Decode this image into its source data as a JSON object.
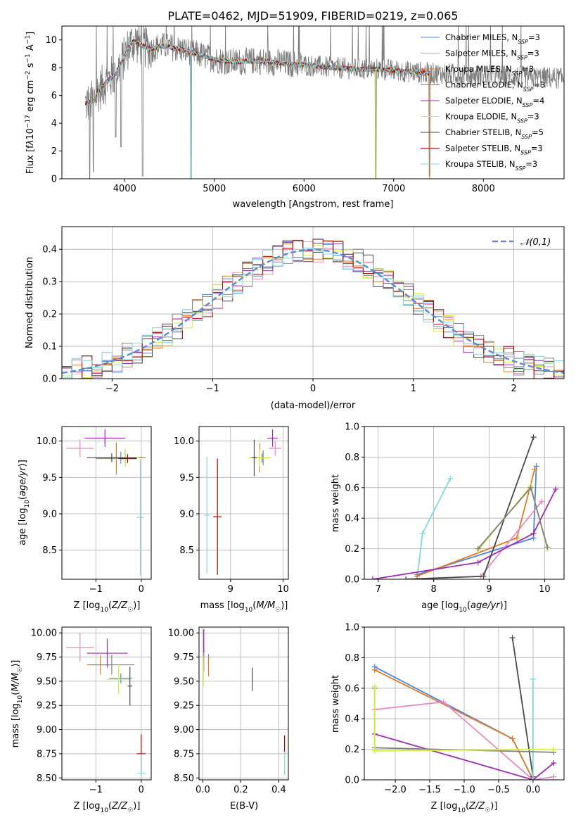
{
  "colors": {
    "Chabrier MILES": "#4f86e0",
    "Salpeter MILES": "#e78ac3",
    "Kroupa MILES": "#e07b28",
    "Chabrier ELODIE": "#808080",
    "Salpeter ELODIE": "#9b2ead",
    "Kroupa ELODIE": "#d6ef3a",
    "Chabrier STELIB": "#4a4a4a",
    "Salpeter STELIB": "#b00000",
    "Kroupa STELIB": "#7fd8e0",
    "gauss": "#5b8ed6"
  },
  "chart_data": [
    {
      "id": "spectrum",
      "type": "line",
      "title": "PLATE=0462, MJD=51909, FIBERID=0219, z=0.065",
      "xlabel": "wavelength [Angstrom, rest frame]",
      "ylabel_parts": [
        "Flux [f",
        "λ",
        "10",
        "−17",
        " erg cm",
        "−2",
        " s",
        "−1",
        " A",
        "−1",
        "]"
      ],
      "xlim": [
        3300,
        8900
      ],
      "ylim": [
        0,
        11
      ],
      "xticks": [
        4000,
        5000,
        6000,
        7000,
        8000
      ],
      "yticks": [
        0,
        2,
        4,
        6,
        8,
        10
      ],
      "legend": [
        {
          "model": "Chabrier MILES",
          "n": "3"
        },
        {
          "model": "Salpeter MILES",
          "n": "3"
        },
        {
          "model": "Kroupa MILES",
          "n": "3"
        },
        {
          "model": "Chabrier ELODIE",
          "n": "3"
        },
        {
          "model": "Salpeter ELODIE",
          "n": "4"
        },
        {
          "model": "Kroupa ELODIE",
          "n": "3"
        },
        {
          "model": "Chabrier STELIB",
          "n": "5"
        },
        {
          "model": "Salpeter STELIB",
          "n": "3"
        },
        {
          "model": "Kroupa STELIB",
          "n": "3"
        }
      ],
      "legend_prefix": "N",
      "legend_sub": "SSP",
      "legend_placement": "right",
      "continuum": [
        [
          3560,
          5.4
        ],
        [
          3650,
          5.6
        ],
        [
          3700,
          6.3
        ],
        [
          3800,
          7.0
        ],
        [
          3900,
          7.6
        ],
        [
          4000,
          8.8
        ],
        [
          4050,
          9.6
        ],
        [
          4100,
          9.9
        ],
        [
          4200,
          9.6
        ],
        [
          4300,
          9.3
        ],
        [
          4400,
          9.6
        ],
        [
          4500,
          9.5
        ],
        [
          4700,
          9.2
        ],
        [
          4900,
          8.8
        ],
        [
          5000,
          8.6
        ],
        [
          5200,
          8.4
        ],
        [
          5500,
          8.5
        ],
        [
          5800,
          8.3
        ],
        [
          6000,
          8.2
        ],
        [
          6300,
          8.0
        ],
        [
          6600,
          7.9
        ],
        [
          6800,
          7.9
        ],
        [
          7000,
          7.8
        ],
        [
          7200,
          7.7
        ],
        [
          7400,
          7.6
        ]
      ],
      "data_range": [
        3560,
        8900
      ],
      "model_range": [
        3560,
        7400
      ],
      "dips": [
        [
          3610,
          0
        ],
        [
          3650,
          0.5
        ],
        [
          3900,
          3.0
        ],
        [
          3960,
          2.3
        ],
        [
          4200,
          0.2
        ],
        [
          4740,
          0
        ],
        [
          6800,
          0
        ],
        [
          7400,
          0.2
        ]
      ],
      "grid": false
    },
    {
      "id": "residuals",
      "type": "step",
      "xlabel": "(data-model)/error",
      "ylabel": "Normed distribution",
      "xlim": [
        -2.5,
        2.5
      ],
      "ylim": [
        0,
        0.47
      ],
      "xticks": [
        -2,
        -1,
        0,
        1,
        2
      ],
      "yticks": [
        0.0,
        0.1,
        0.2,
        0.3,
        0.4
      ],
      "bin_width": 0.1,
      "legend": {
        "label": "𝒩(0,1)",
        "placement": "top-right"
      },
      "gaussian": {
        "mean": 0,
        "sigma": 1
      },
      "grid": true
    },
    {
      "id": "age_vs_Z",
      "type": "errorbar",
      "xlabel_parts": [
        "Z [log",
        "10",
        "(Z/Z",
        "☉",
        ")]"
      ],
      "ylabel_parts": [
        "age  [log",
        "10",
        "(age/yr)]"
      ],
      "xlim": [
        -1.75,
        0.22
      ],
      "ylim": [
        8.1,
        10.2
      ],
      "xticks": [
        -1,
        0
      ],
      "yticks": [
        8.5,
        9.0,
        9.5,
        10.0
      ],
      "grid": true,
      "points": [
        {
          "s": "Chabrier MILES",
          "x": -0.45,
          "y": 9.77,
          "xe": 0.5,
          "ye": 0.08
        },
        {
          "s": "Salpeter MILES",
          "x": -1.35,
          "y": 9.9,
          "xe": 0.3,
          "ye": 0.12
        },
        {
          "s": "Kroupa MILES",
          "x": -0.55,
          "y": 9.76,
          "xe": 0.45,
          "ye": 0.22
        },
        {
          "s": "Chabrier ELODIE",
          "x": -0.35,
          "y": 9.77,
          "xe": 0.45,
          "ye": 0.1
        },
        {
          "s": "Salpeter ELODIE",
          "x": -0.8,
          "y": 10.04,
          "xe": 0.45,
          "ye": 0.12
        },
        {
          "s": "Kroupa ELODIE",
          "x": -0.35,
          "y": 9.77,
          "xe": 0.3,
          "ye": 0.12
        },
        {
          "s": "Chabrier STELIB",
          "x": -0.65,
          "y": 9.77,
          "xe": 0.55,
          "ye": 0.06
        },
        {
          "s": "Salpeter STELIB",
          "x": -0.3,
          "y": 9.76,
          "xe": 0.2,
          "ye": 0.06
        },
        {
          "s": "Kroupa STELIB",
          "x": -0.02,
          "y": 8.95,
          "xe": 0.08,
          "ye": 0.8
        }
      ]
    },
    {
      "id": "age_vs_mass",
      "type": "errorbar",
      "xlabel_parts": [
        "mass [log",
        "10",
        "(M/M",
        "☉",
        ")]"
      ],
      "xlim": [
        8.4,
        10.1
      ],
      "ylim": [
        8.1,
        10.2
      ],
      "xticks": [
        8,
        9,
        10
      ],
      "yticks": [
        8.5,
        9.0,
        9.5,
        10.0
      ],
      "grid": true,
      "points": [
        {
          "s": "Chabrier MILES",
          "x": 9.6,
          "y": 9.77,
          "xe": 0.15,
          "ye": 0.06
        },
        {
          "s": "Salpeter MILES",
          "x": 9.85,
          "y": 9.9,
          "xe": 0.12,
          "ye": 0.1
        },
        {
          "s": "Kroupa MILES",
          "x": 9.55,
          "y": 9.77,
          "xe": 0.2,
          "ye": 0.2
        },
        {
          "s": "Chabrier ELODIE",
          "x": 9.62,
          "y": 9.77,
          "xe": 0.12,
          "ye": 0.1
        },
        {
          "s": "Salpeter ELODIE",
          "x": 9.8,
          "y": 10.04,
          "xe": 0.1,
          "ye": 0.12
        },
        {
          "s": "Kroupa ELODIE",
          "x": 9.55,
          "y": 9.77,
          "xe": 0.22,
          "ye": 0.12
        },
        {
          "s": "Chabrier STELIB",
          "x": 9.45,
          "y": 9.77,
          "xe": 0.05,
          "ye": 0.25
        },
        {
          "s": "Salpeter STELIB",
          "x": 8.75,
          "y": 8.96,
          "xe": 0.08,
          "ye": 0.8
        },
        {
          "s": "Kroupa STELIB",
          "x": 8.55,
          "y": 8.98,
          "xe": 0.05,
          "ye": 0.8
        }
      ]
    },
    {
      "id": "weight_vs_age",
      "type": "line",
      "xlabel_parts": [
        "age  [log",
        "10",
        "(age/yr)]"
      ],
      "ylabel": "mass weight",
      "xlim": [
        6.75,
        10.35
      ],
      "ylim": [
        0,
        1
      ],
      "xticks": [
        7,
        8,
        9,
        10
      ],
      "yticks": [
        0.0,
        0.2,
        0.4,
        0.6,
        0.8,
        1.0
      ],
      "grid": true,
      "series": [
        {
          "s": "Kroupa STELIB",
          "x": [
            7.7,
            7.8,
            8.3
          ],
          "y": [
            0.0,
            0.3,
            0.66
          ]
        },
        {
          "s": "Chabrier MILES",
          "x": [
            7.7,
            9.8,
            9.85
          ],
          "y": [
            0.03,
            0.27,
            0.74
          ]
        },
        {
          "s": "Kroupa MILES",
          "x": [
            7.7,
            9.5,
            9.82
          ],
          "y": [
            0.02,
            0.27,
            0.72
          ]
        },
        {
          "s": "Salpeter MILES",
          "x": [
            8.85,
            9.95
          ],
          "y": [
            0.02,
            0.51
          ]
        },
        {
          "s": "Salpeter ELODIE",
          "x": [
            6.9,
            8.8,
            9.8,
            10.2
          ],
          "y": [
            0.0,
            0.11,
            0.3,
            0.59
          ]
        },
        {
          "s": "Chabrier STELIB",
          "x": [
            7.5,
            8.9,
            9.8
          ],
          "y": [
            0.0,
            0.02,
            0.93
          ]
        },
        {
          "s": "Kroupa ELODIE",
          "x": [
            8.8,
            9.75,
            10.05
          ],
          "y": [
            0.19,
            0.61,
            0.2
          ]
        },
        {
          "s": "Chabrier ELODIE",
          "x": [
            8.8,
            9.75,
            10.05
          ],
          "y": [
            0.2,
            0.6,
            0.21
          ]
        }
      ]
    },
    {
      "id": "mass_vs_Z",
      "type": "errorbar",
      "xlabel_parts": [
        "Z [log",
        "10",
        "(Z/Z",
        "☉",
        ")]"
      ],
      "ylabel_parts": [
        "mass [log",
        "10",
        "(M/M",
        "☉",
        ")]"
      ],
      "xlim": [
        -1.75,
        0.22
      ],
      "ylim": [
        8.48,
        10.06
      ],
      "xticks": [
        -1,
        0
      ],
      "yticks": [
        8.5,
        8.75,
        9.0,
        9.25,
        9.5,
        9.75,
        10.0
      ],
      "grid": true,
      "points": [
        {
          "s": "Chabrier MILES",
          "x": -0.45,
          "y": 9.53,
          "xe": 0.25,
          "ye": 0.05
        },
        {
          "s": "Salpeter MILES",
          "x": -1.35,
          "y": 9.85,
          "xe": 0.3,
          "ye": 0.15
        },
        {
          "s": "Kroupa MILES",
          "x": -0.9,
          "y": 9.67,
          "xe": 0.3,
          "ye": 0.1
        },
        {
          "s": "Chabrier ELODIE",
          "x": -0.65,
          "y": 9.67,
          "xe": 0.5,
          "ye": 0.1
        },
        {
          "s": "Salpeter ELODIE",
          "x": -0.75,
          "y": 9.79,
          "xe": 0.45,
          "ye": 0.15
        },
        {
          "s": "Kroupa ELODIE",
          "x": -0.5,
          "y": 9.52,
          "xe": 0.25,
          "ye": 0.15
        },
        {
          "s": "Chabrier STELIB",
          "x": -0.25,
          "y": 9.45,
          "xe": 0.05,
          "ye": 0.2
        },
        {
          "s": "Salpeter STELIB",
          "x": 0.0,
          "y": 8.75,
          "xe": 0.1,
          "ye": 0.2
        },
        {
          "s": "Kroupa STELIB",
          "x": 0.0,
          "y": 8.55,
          "xe": 0.08,
          "ye": 0.2
        }
      ]
    },
    {
      "id": "mass_vs_ebv",
      "type": "errorbar",
      "xlabel": "E(B-V)",
      "xlim": [
        -0.02,
        0.45
      ],
      "ylim": [
        8.48,
        10.06
      ],
      "xticks": [
        0.0,
        0.2,
        0.4
      ],
      "yticks": [
        8.5,
        8.75,
        9.0,
        9.25,
        9.5,
        9.75,
        10.0
      ],
      "grid": true,
      "points": [
        {
          "s": "Chabrier MILES",
          "x": 0.03,
          "y": 9.68,
          "ye": 0.1
        },
        {
          "s": "Salpeter MILES",
          "x": 0.005,
          "y": 9.92,
          "ye": 0.12
        },
        {
          "s": "Kroupa MILES",
          "x": 0.03,
          "y": 9.65,
          "ye": 0.1
        },
        {
          "s": "Chabrier ELODIE",
          "x": 0.005,
          "y": 9.72,
          "ye": 0.12
        },
        {
          "s": "Salpeter ELODIE",
          "x": 0.005,
          "y": 9.92,
          "ye": 0.12
        },
        {
          "s": "Kroupa ELODIE",
          "x": 0.003,
          "y": 9.6,
          "ye": 0.15
        },
        {
          "s": "Chabrier STELIB",
          "x": 0.26,
          "y": 9.52,
          "ye": 0.12
        },
        {
          "s": "Salpeter STELIB",
          "x": 0.43,
          "y": 8.84,
          "ye": 0.1
        },
        {
          "s": "Kroupa STELIB",
          "x": 0.43,
          "y": 8.65,
          "ye": 0.12
        }
      ]
    },
    {
      "id": "weight_vs_Z",
      "type": "line",
      "xlabel_parts": [
        "Z [log",
        "10",
        "(Z/Z",
        "☉",
        ")]"
      ],
      "ylabel": "mass weight",
      "xlim": [
        -2.45,
        0.45
      ],
      "ylim": [
        0,
        1
      ],
      "xticks": [
        -2.0,
        -1.5,
        -1.0,
        -0.5,
        0.0
      ],
      "yticks": [
        0.0,
        0.2,
        0.4,
        0.6,
        0.8,
        1.0
      ],
      "grid": true,
      "series": [
        {
          "s": "Chabrier MILES",
          "x": [
            -2.3,
            -0.3,
            0.0
          ],
          "y": [
            0.74,
            0.27,
            0.0
          ]
        },
        {
          "s": "Kroupa MILES",
          "x": [
            -2.3,
            -0.3,
            0.0
          ],
          "y": [
            0.72,
            0.27,
            0.0
          ]
        },
        {
          "s": "Salpeter MILES",
          "x": [
            -2.3,
            -1.3,
            0.0,
            0.3
          ],
          "y": [
            0.46,
            0.51,
            0.0,
            0.02
          ]
        },
        {
          "s": "Salpeter ELODIE",
          "x": [
            -2.3,
            0.0,
            0.3
          ],
          "y": [
            0.3,
            0.0,
            0.11
          ]
        },
        {
          "s": "Chabrier STELIB",
          "x": [
            -0.3,
            0.0
          ],
          "y": [
            0.93,
            0.02
          ]
        },
        {
          "s": "Kroupa STELIB",
          "x": [
            0.0,
            0.0
          ],
          "y": [
            0.66,
            0.0
          ]
        },
        {
          "s": "Chabrier ELODIE",
          "x": [
            -2.3,
            -2.3,
            0.3
          ],
          "y": [
            0.6,
            0.21,
            0.18
          ]
        },
        {
          "s": "Kroupa ELODIE",
          "x": [
            -2.3,
            -2.3,
            0.3
          ],
          "y": [
            0.61,
            0.19,
            0.2
          ]
        }
      ]
    }
  ]
}
